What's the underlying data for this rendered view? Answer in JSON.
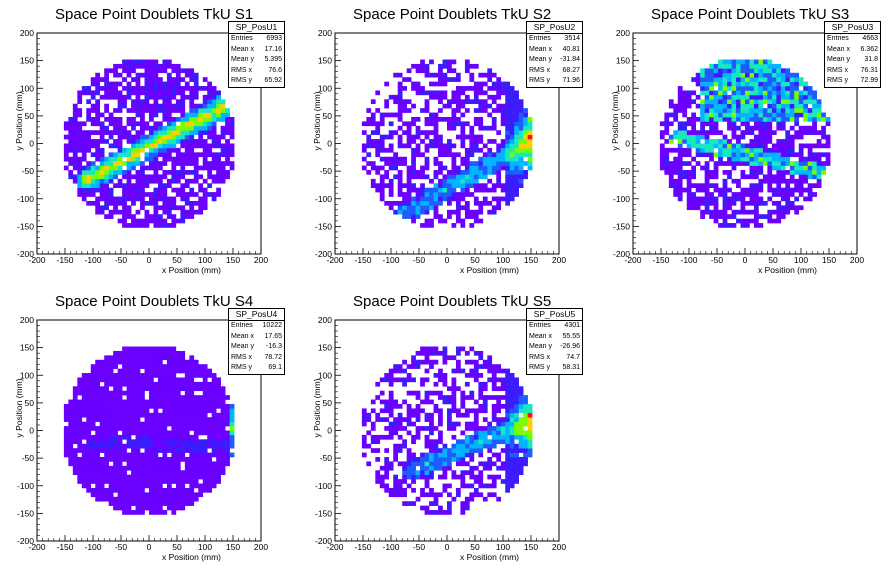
{
  "chart_data": [
    {
      "type": "heatmap",
      "title": "Space Point Doublets TkU S1",
      "xlabel": "x Position (mm)",
      "ylabel": "y Position (mm)",
      "xlim": [
        -200,
        200
      ],
      "ylim": [
        -200,
        200
      ],
      "xticks": [
        -200,
        -150,
        -100,
        -50,
        0,
        50,
        100,
        150,
        200
      ],
      "yticks": [
        -200,
        -150,
        -100,
        -50,
        0,
        50,
        100,
        150,
        200
      ],
      "disk_radius": 155,
      "pattern": {
        "kind": "band",
        "x1": -110,
        "y1": -65,
        "x2": 150,
        "y2": 75,
        "occupancy": 0.72
      },
      "stats": {
        "name": "SP_PosU1",
        "rows": [
          {
            "label": "Entries",
            "value": "6993"
          },
          {
            "label": "Mean x",
            "value": "17.16"
          },
          {
            "label": "Mean y",
            "value": "5.395"
          },
          {
            "label": "RMS x",
            "value": "76.6"
          },
          {
            "label": "RMS y",
            "value": "65.92"
          }
        ]
      }
    },
    {
      "type": "heatmap",
      "title": "Space Point Doublets TkU S2",
      "xlabel": "x Position (mm)",
      "ylabel": "y Position (mm)",
      "xlim": [
        -200,
        200
      ],
      "ylim": [
        -200,
        200
      ],
      "xticks": [
        -200,
        -150,
        -100,
        -50,
        0,
        50,
        100,
        150,
        200
      ],
      "yticks": [
        -200,
        -150,
        -100,
        -50,
        0,
        50,
        100,
        150,
        200
      ],
      "disk_radius": 155,
      "pattern": {
        "kind": "edge",
        "x1": -80,
        "y1": -130,
        "x2": 155,
        "y2": 10,
        "occupancy": 0.55
      },
      "stats": {
        "name": "SP_PosU2",
        "rows": [
          {
            "label": "Entries",
            "value": "3514"
          },
          {
            "label": "Mean x",
            "value": "40.81"
          },
          {
            "label": "Mean y",
            "value": "-31.84"
          },
          {
            "label": "RMS x",
            "value": "68.27"
          },
          {
            "label": "RMS y",
            "value": "71.96"
          }
        ]
      }
    },
    {
      "type": "heatmap",
      "title": "Space Point Doublets TkU S3",
      "xlabel": "x Position (mm)",
      "ylabel": "y Position (mm)",
      "xlim": [
        -200,
        200
      ],
      "ylim": [
        -200,
        200
      ],
      "xticks": [
        -200,
        -150,
        -100,
        -50,
        0,
        50,
        100,
        150,
        200
      ],
      "yticks": [
        -200,
        -150,
        -100,
        -50,
        0,
        50,
        100,
        150,
        200
      ],
      "disk_radius": 155,
      "pattern": {
        "kind": "upper",
        "x1": -120,
        "y1": 0,
        "x2": 130,
        "y2": 120,
        "occupancy": 0.7
      },
      "stats": {
        "name": "SP_PosU3",
        "rows": [
          {
            "label": "Entries",
            "value": "4663"
          },
          {
            "label": "Mean x",
            "value": "6.362"
          },
          {
            "label": "Mean y",
            "value": "31.8"
          },
          {
            "label": "RMS x",
            "value": "76.31"
          },
          {
            "label": "RMS y",
            "value": "72.99"
          }
        ]
      }
    },
    {
      "type": "heatmap",
      "title": "Space Point Doublets TkU S4",
      "xlabel": "x Position (mm)",
      "ylabel": "y Position (mm)",
      "xlim": [
        -200,
        200
      ],
      "ylim": [
        -200,
        200
      ],
      "xticks": [
        -200,
        -150,
        -100,
        -50,
        0,
        50,
        100,
        150,
        200
      ],
      "yticks": [
        -200,
        -150,
        -100,
        -50,
        0,
        50,
        100,
        150,
        200
      ],
      "disk_radius": 155,
      "pattern": {
        "kind": "uniform",
        "x1": -100,
        "y1": -30,
        "x2": 150,
        "y2": -30,
        "occupancy": 0.94
      },
      "stats": {
        "name": "SP_PosU4",
        "rows": [
          {
            "label": "Entries",
            "value": "10222"
          },
          {
            "label": "Mean x",
            "value": "17.65"
          },
          {
            "label": "Mean y",
            "value": "-16.3"
          },
          {
            "label": "RMS x",
            "value": "78.72"
          },
          {
            "label": "RMS y",
            "value": "69.1"
          }
        ]
      }
    },
    {
      "type": "heatmap",
      "title": "Space Point Doublets TkU S5",
      "xlabel": "x Position (mm)",
      "ylabel": "y Position (mm)",
      "xlim": [
        -200,
        200
      ],
      "ylim": [
        -200,
        200
      ],
      "xticks": [
        -200,
        -150,
        -100,
        -50,
        0,
        50,
        100,
        150,
        200
      ],
      "yticks": [
        -200,
        -150,
        -100,
        -50,
        0,
        50,
        100,
        150,
        200
      ],
      "disk_radius": 155,
      "pattern": {
        "kind": "edge",
        "x1": -60,
        "y1": -70,
        "x2": 155,
        "y2": 20,
        "occupancy": 0.5
      },
      "stats": {
        "name": "SP_PosU5",
        "rows": [
          {
            "label": "Entries",
            "value": "4301"
          },
          {
            "label": "Mean x",
            "value": "55.55"
          },
          {
            "label": "Mean y",
            "value": "-26.96"
          },
          {
            "label": "RMS x",
            "value": "74.7"
          },
          {
            "label": "RMS y",
            "value": "58.31"
          }
        ]
      }
    }
  ],
  "colors": {
    "palette": [
      "#6a00ff",
      "#3b1cff",
      "#1f5cff",
      "#00b4ff",
      "#18e8c0",
      "#7cfc00",
      "#ffd000",
      "#ff1010"
    ]
  }
}
